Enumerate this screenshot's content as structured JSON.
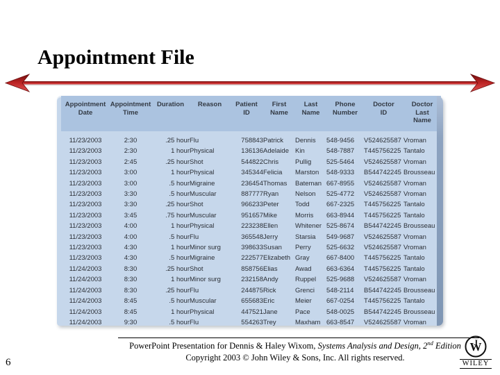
{
  "slide": {
    "title": "Appointment File",
    "page_number": "6"
  },
  "colors": {
    "table_body": "#c6d7eb",
    "table_header": "#abc3e0",
    "table_bevel": "#7f96b4",
    "arrow_red": "#c22a2a",
    "arrow_dark_red": "#6e0f0f"
  },
  "table": {
    "columns": [
      "Appointment\nDate",
      "Appointment\nTime",
      "Duration",
      "Reason",
      "Patient\nID",
      "First\nName",
      "Last\nName",
      "Phone\nNumber",
      "Doctor\nID",
      "Doctor\nLast\nName"
    ],
    "rows": [
      [
        "11/23/2003",
        "2:30",
        ".25 hour",
        "Flu",
        "758843",
        "Patrick",
        "Dennis",
        "548-9456",
        "V524625587",
        "Vroman"
      ],
      [
        "11/23/2003",
        "2:30",
        "1 hour",
        "Physical",
        "136136",
        "Adelaide",
        "Kin",
        "548-7887",
        "T445756225",
        "Tantalo"
      ],
      [
        "11/23/2003",
        "2:45",
        ".25 hour",
        "Shot",
        "544822",
        "Chris",
        "Pullig",
        "525-5464",
        "V524625587",
        "Vroman"
      ],
      [
        "11/23/2003",
        "3:00",
        "1 hour",
        "Physical",
        "345344",
        "Felicia",
        "Marston",
        "548-9333",
        "B544742245",
        "Brousseau"
      ],
      [
        "11/23/2003",
        "3:00",
        ".5 hour",
        "Migraine",
        "236454",
        "Thomas",
        "Bateman",
        "667-8955",
        "V524625587",
        "Vroman"
      ],
      [
        "11/23/2003",
        "3:30",
        ".5 hour",
        "Muscular",
        "887777",
        "Ryan",
        "Nelson",
        "525-4772",
        "V524625587",
        "Vroman"
      ],
      [
        "11/23/2003",
        "3:30",
        ".25 hour",
        "Shot",
        "966233",
        "Peter",
        "Todd",
        "667-2325",
        "T445756225",
        "Tantalo"
      ],
      [
        "11/23/2003",
        "3:45",
        ".75 hour",
        "Muscular",
        "951657",
        "Mike",
        "Morris",
        "663-8944",
        "T445756225",
        "Tantalo"
      ],
      [
        "11/23/2003",
        "4:00",
        "1 hour",
        "Physical",
        "223238",
        "Ellen",
        "Whitener",
        "525-8674",
        "B544742245",
        "Brousseau"
      ],
      [
        "11/23/2003",
        "4:00",
        ".5 hour",
        "Flu",
        "365548",
        "Jerry",
        "Starsia",
        "549-9687",
        "V524625587",
        "Vroman"
      ],
      [
        "11/23/2003",
        "4:30",
        "1 hour",
        "Minor surg",
        "398633",
        "Susan",
        "Perry",
        "525-6632",
        "V524625587",
        "Vroman"
      ],
      [
        "11/23/2003",
        "4:30",
        ".5 hour",
        "Migraine",
        "222577",
        "Elizabeth",
        "Gray",
        "667-8400",
        "T445756225",
        "Tantalo"
      ],
      [
        "11/24/2003",
        "8:30",
        ".25 hour",
        "Shot",
        "858756",
        "Elias",
        "Awad",
        "663-6364",
        "T445756225",
        "Tantalo"
      ],
      [
        "11/24/2003",
        "8:30",
        "1 hour",
        "Minor surg",
        "232158",
        "Andy",
        "Ruppel",
        "525-9688",
        "V524625587",
        "Vroman"
      ],
      [
        "11/24/2003",
        "8:30",
        ".25 hour",
        "Flu",
        "244875",
        "Rick",
        "Grenci",
        "548-2114",
        "B544742245",
        "Brousseau"
      ],
      [
        "11/24/2003",
        "8:45",
        ".5 hour",
        "Muscular",
        "655683",
        "Eric",
        "Meier",
        "667-0254",
        "T445756225",
        "Tantalo"
      ],
      [
        "11/24/2003",
        "8:45",
        "1 hour",
        "Physical",
        "447521",
        "Jane",
        "Pace",
        "548-0025",
        "B544742245",
        "Brousseau"
      ],
      [
        "11/24/2003",
        "9:30",
        ".5 hour",
        "Flu",
        "554263",
        "Trey",
        "Maxham",
        "663-8547",
        "V524625587",
        "Vroman"
      ]
    ]
  },
  "footer": {
    "line1_normal": "PowerPoint Presentation for Dennis & Haley Wixom, ",
    "line1_italic": "Systems Analysis and Design, 2",
    "line1_sup": "nd",
    "line1_italic2": " Edition",
    "line2": "Copyright 2003 © John Wiley & Sons, Inc.  All rights reserved."
  },
  "logo": {
    "monogram": "W",
    "monogram_hook": "J",
    "wordmark": "WILEY"
  }
}
